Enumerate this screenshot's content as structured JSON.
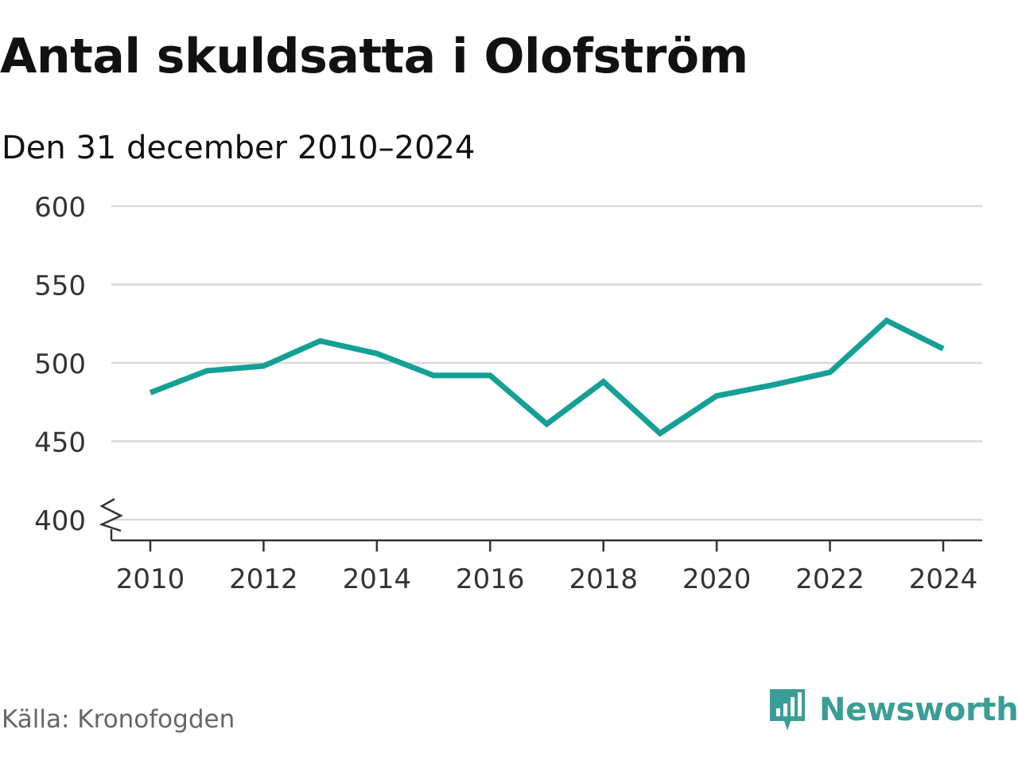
{
  "chart_data": {
    "type": "line",
    "title": "Antal skuldsatta i Olofström",
    "subtitle": "Den 31 december 2010–2024",
    "x": [
      2010,
      2011,
      2012,
      2013,
      2014,
      2015,
      2016,
      2017,
      2018,
      2019,
      2020,
      2021,
      2022,
      2023,
      2024
    ],
    "series": [
      {
        "name": "Antal skuldsatta",
        "values": [
          481,
          495,
          498,
          514,
          506,
          492,
          492,
          461,
          488,
          455,
          479,
          486,
          494,
          527,
          509
        ]
      }
    ],
    "x_ticks": [
      "2010",
      "2012",
      "2014",
      "2016",
      "2018",
      "2020",
      "2022",
      "2024"
    ],
    "y_ticks": [
      "400",
      "450",
      "500",
      "550",
      "600"
    ],
    "ylim": [
      400,
      600
    ],
    "xlim": [
      2010,
      2024
    ],
    "xlabel": "",
    "ylabel": "",
    "grid": true,
    "axis_break": true,
    "line_color": "#14a095",
    "source": "Källa: Kronofogden"
  },
  "brand": {
    "name": "Newsworthy",
    "color": "#3a9e96"
  }
}
